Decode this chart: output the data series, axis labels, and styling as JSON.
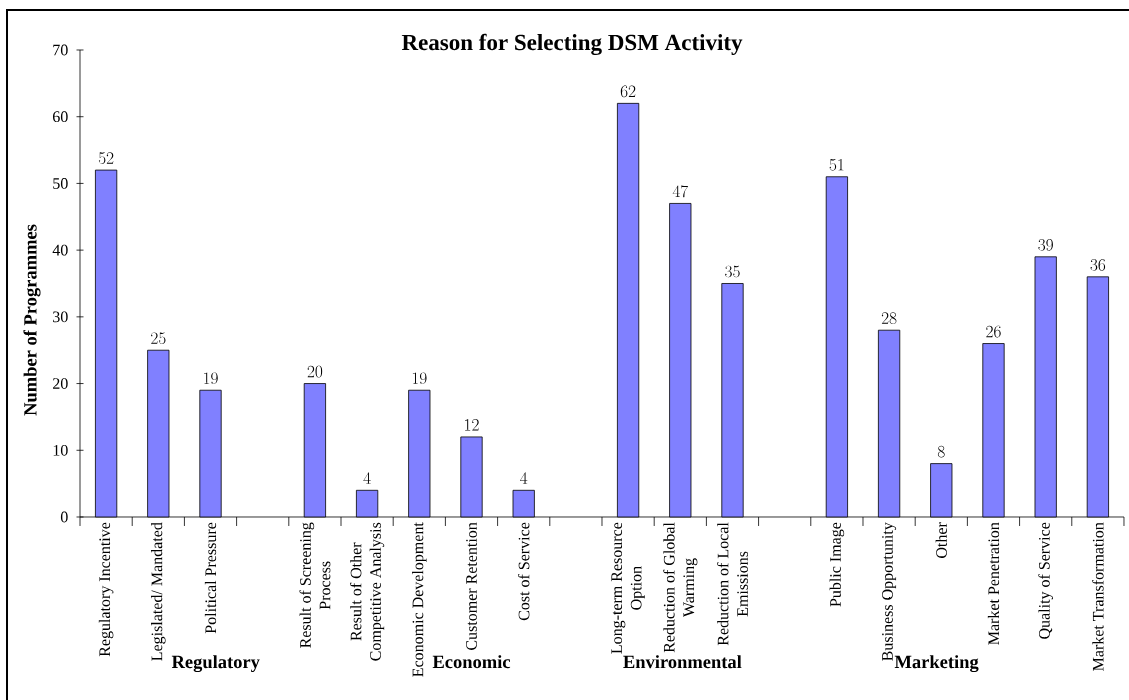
{
  "chart_data": {
    "type": "bar",
    "title": "Reason for Selecting DSM Activity",
    "ylabel": "Number of Programmes",
    "categories": [
      "Regulatory Incentive",
      "Legislated/ Mandated",
      "Political Pressure",
      null,
      "Result of Screening Process",
      "Result of Other Competitive Analysis",
      "Economic Development",
      "Customer Retention",
      "Cost of Service",
      null,
      "Long-term Resource Option",
      "Reduction of Global Warming",
      "Reduction of Local Emissions",
      null,
      "Public Image",
      "Business Opportunity",
      "Other",
      "Market Penetration",
      "Quality of Service",
      "Market Transformation"
    ],
    "values": [
      52,
      25,
      19,
      null,
      20,
      4,
      19,
      12,
      4,
      null,
      62,
      47,
      35,
      null,
      51,
      28,
      8,
      26,
      39,
      36
    ],
    "color": "#8080ff",
    "ylim": [
      0,
      70
    ],
    "yticks": [
      0,
      10,
      20,
      30,
      40,
      50,
      60,
      70
    ],
    "data_labels": true,
    "annotations": [
      "Regulatory",
      "Economic",
      "Environmental",
      "Marketing"
    ]
  }
}
